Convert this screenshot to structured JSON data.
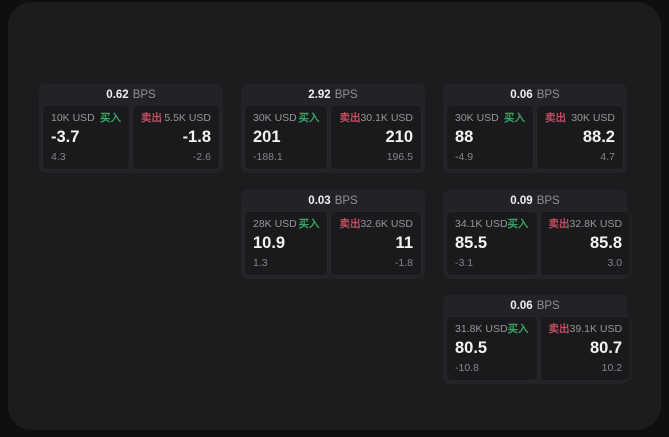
{
  "window": {
    "background": "#0f0f11",
    "panel_background": "#1c1c1e"
  },
  "labels": {
    "bps_unit": "BPS",
    "buy": "买入",
    "sell": "卖出"
  },
  "colors": {
    "buy_green": "#3ca265",
    "sell_red": "#be4e60",
    "value_white": "#f2f2f3",
    "label_gray": "#97979b",
    "dim_gray": "#85858a",
    "card_background": "#232327",
    "subcard_background": "#1a1a1c"
  },
  "cards": [
    {
      "bps": "0.62",
      "buy": {
        "size": "10K USD",
        "price": "-3.7",
        "sub": "4.3"
      },
      "sell": {
        "size": "5.5K USD",
        "price": "-1.8",
        "sub": "-2.6"
      }
    },
    {
      "bps": "2.92",
      "buy": {
        "size": "30K USD",
        "price": "201",
        "sub": "-188.1"
      },
      "sell": {
        "size": "30.1K USD",
        "price": "210",
        "sub": "196.5"
      }
    },
    {
      "bps": "0.06",
      "buy": {
        "size": "30K USD",
        "price": "88",
        "sub": "-4.9"
      },
      "sell": {
        "size": "30K USD",
        "price": "88.2",
        "sub": "4.7"
      }
    },
    {
      "bps": "0.03",
      "buy": {
        "size": "28K USD",
        "price": "10.9",
        "sub": "1.3"
      },
      "sell": {
        "size": "32.6K USD",
        "price": "11",
        "sub": "-1.8"
      }
    },
    {
      "bps": "0.09",
      "buy": {
        "size": "34.1K USD",
        "price": "85.5",
        "sub": "-3.1"
      },
      "sell": {
        "size": "32.8K USD",
        "price": "85.8",
        "sub": "3.0"
      }
    },
    {
      "bps": "0.06",
      "buy": {
        "size": "31.8K USD",
        "price": "80.5",
        "sub": "-10.8"
      },
      "sell": {
        "size": "39.1K USD",
        "price": "80.7",
        "sub": "10.2"
      }
    }
  ]
}
